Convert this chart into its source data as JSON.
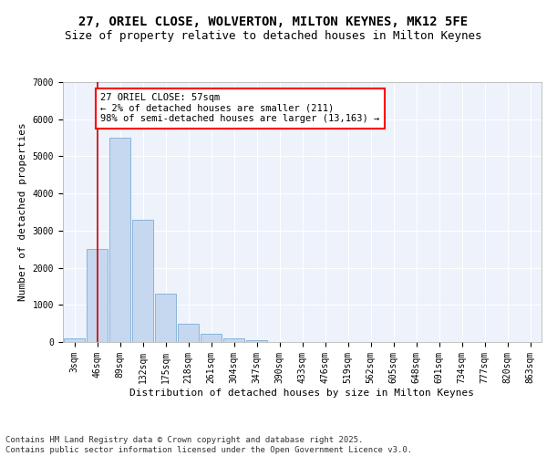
{
  "title1": "27, ORIEL CLOSE, WOLVERTON, MILTON KEYNES, MK12 5FE",
  "title2": "Size of property relative to detached houses in Milton Keynes",
  "xlabel": "Distribution of detached houses by size in Milton Keynes",
  "ylabel": "Number of detached properties",
  "bar_color": "#c5d8f0",
  "bar_edge_color": "#7eadd4",
  "background_color": "#edf2fb",
  "grid_color": "#ffffff",
  "annotation_text": "27 ORIEL CLOSE: 57sqm\n← 2% of detached houses are smaller (211)\n98% of semi-detached houses are larger (13,163) →",
  "vline_x": 1,
  "vline_color": "#cc0000",
  "categories": [
    "3sqm",
    "46sqm",
    "89sqm",
    "132sqm",
    "175sqm",
    "218sqm",
    "261sqm",
    "304sqm",
    "347sqm",
    "390sqm",
    "433sqm",
    "476sqm",
    "519sqm",
    "562sqm",
    "605sqm",
    "648sqm",
    "691sqm",
    "734sqm",
    "777sqm",
    "820sqm",
    "863sqm"
  ],
  "values": [
    100,
    2500,
    5500,
    3300,
    1300,
    480,
    220,
    100,
    60,
    0,
    0,
    0,
    0,
    0,
    0,
    0,
    0,
    0,
    0,
    0,
    0
  ],
  "ylim": [
    0,
    7000
  ],
  "yticks": [
    0,
    1000,
    2000,
    3000,
    4000,
    5000,
    6000,
    7000
  ],
  "footer": "Contains HM Land Registry data © Crown copyright and database right 2025.\nContains public sector information licensed under the Open Government Licence v3.0.",
  "title_fontsize": 10,
  "subtitle_fontsize": 9,
  "axis_label_fontsize": 8,
  "tick_fontsize": 7,
  "annotation_fontsize": 7.5,
  "footer_fontsize": 6.5
}
